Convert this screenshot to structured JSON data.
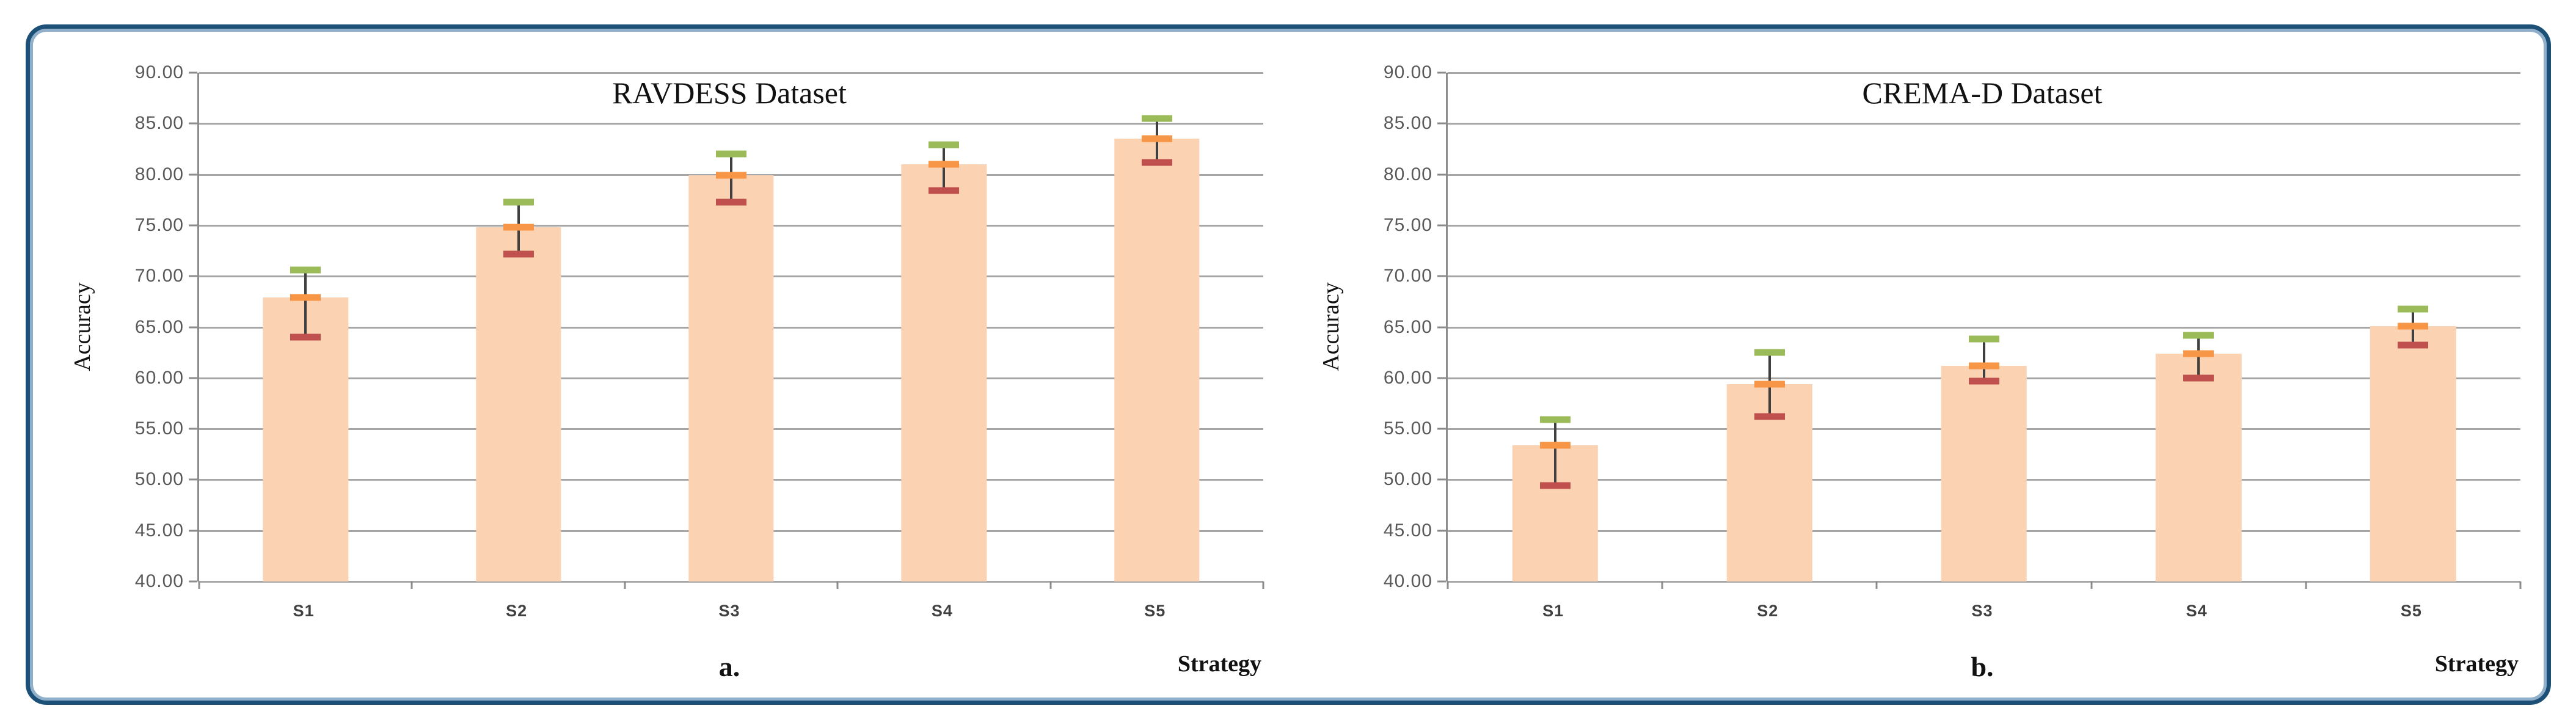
{
  "frame": {
    "border_color": "#1D5077",
    "inner_ring_color": "#8FAFCB",
    "background": "#FFFFFF"
  },
  "colors": {
    "bar_fill": "#FBD3B2",
    "error_cap_max": "#9BBB59",
    "error_cap_mean": "#F79646",
    "error_cap_min": "#C0504D",
    "error_line": "#404040",
    "gridline": "#A6A6A6",
    "axis_line": "#8C8C8C",
    "tick_text": "#595959"
  },
  "chart_data": [
    {
      "type": "bar",
      "title": "RAVDESS Dataset",
      "panel_label": "a.",
      "xlabel": "Strategy",
      "ylabel": "Accuracy",
      "categories": [
        "S1",
        "S2",
        "S3",
        "S4",
        "S5"
      ],
      "values": [
        67.9,
        74.8,
        79.9,
        81.0,
        83.5
      ],
      "error_high": [
        70.6,
        77.3,
        82.0,
        82.9,
        85.5
      ],
      "error_low": [
        64.0,
        72.2,
        77.3,
        78.4,
        81.2
      ],
      "ylim": [
        40,
        90
      ],
      "ytick_step": 5,
      "ytick_labels": [
        "90.00",
        "85.00",
        "80.00",
        "75.00",
        "70.00",
        "65.00",
        "60.00",
        "55.00",
        "50.00",
        "45.00",
        "40.00"
      ],
      "grid": true,
      "legend": "none"
    },
    {
      "type": "bar",
      "title": "CREMA-D Dataset",
      "panel_label": "b.",
      "xlabel": "Strategy",
      "ylabel": "Accuracy",
      "categories": [
        "S1",
        "S2",
        "S3",
        "S4",
        "S5"
      ],
      "values": [
        53.4,
        59.4,
        61.2,
        62.4,
        65.1
      ],
      "error_high": [
        55.9,
        62.5,
        63.8,
        64.2,
        66.8
      ],
      "error_low": [
        49.4,
        56.2,
        59.7,
        60.0,
        63.2
      ],
      "ylim": [
        40,
        90
      ],
      "ytick_step": 5,
      "ytick_labels": [
        "90.00",
        "85.00",
        "80.00",
        "75.00",
        "70.00",
        "65.00",
        "60.00",
        "55.00",
        "50.00",
        "45.00",
        "40.00"
      ],
      "grid": true,
      "legend": "none"
    }
  ]
}
